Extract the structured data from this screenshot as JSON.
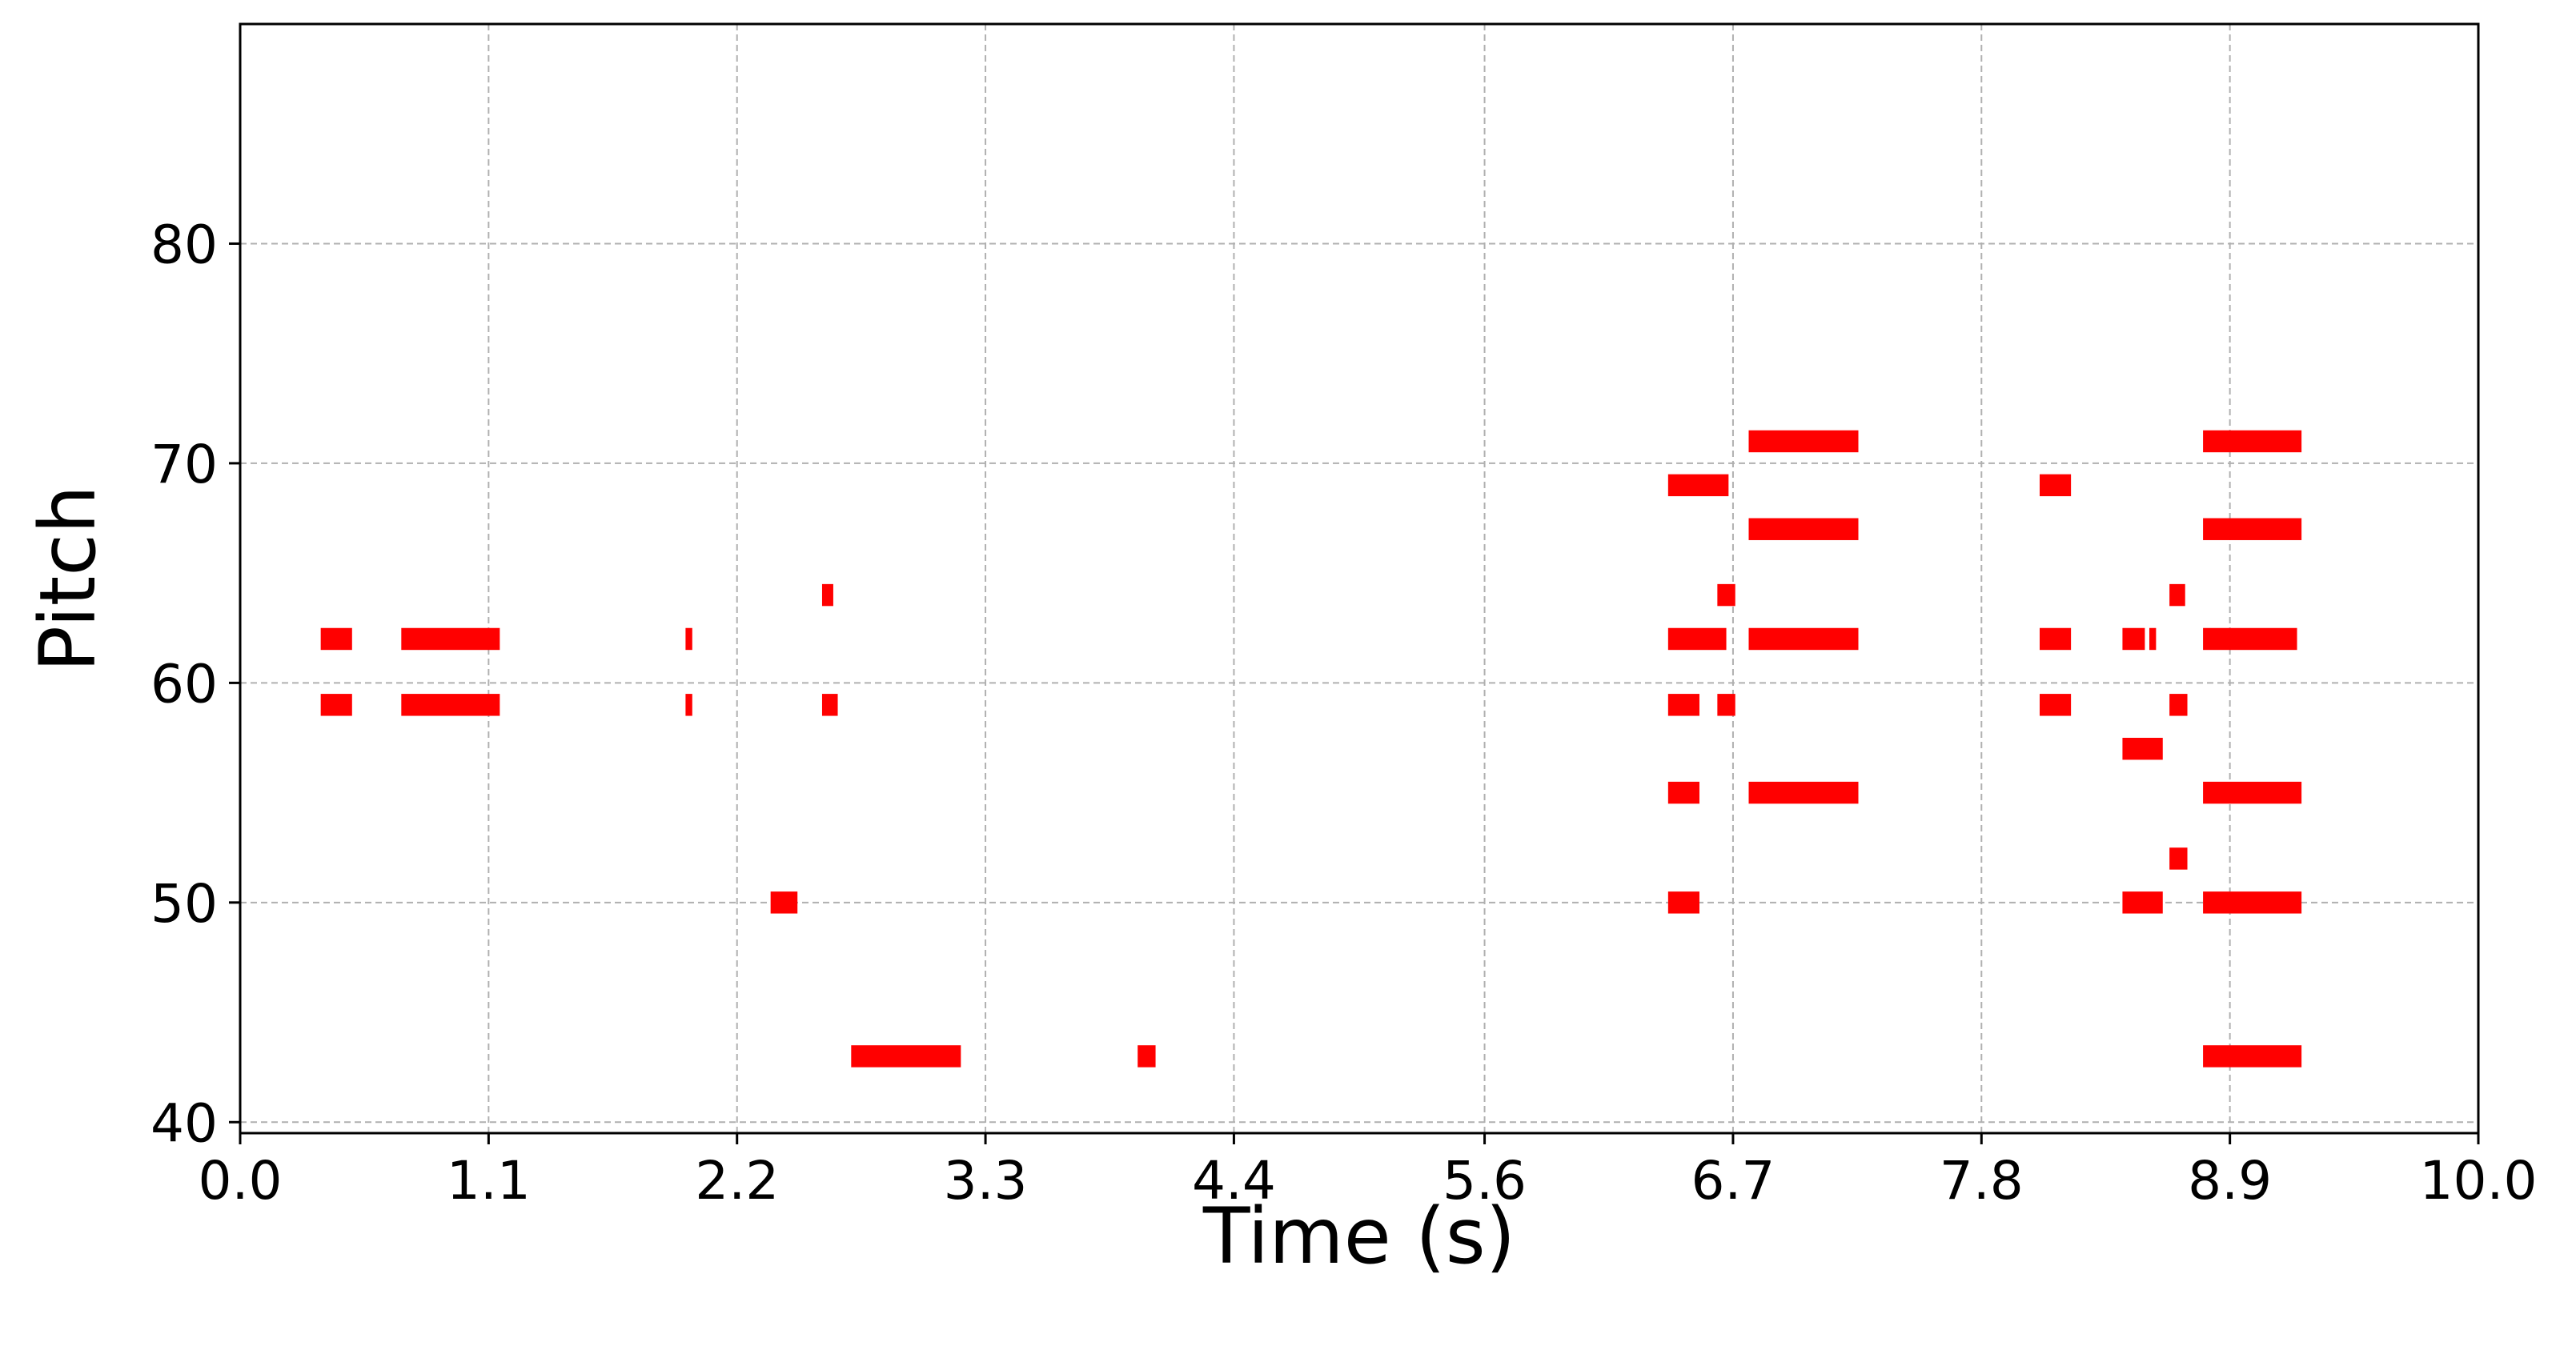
{
  "chart_data": {
    "type": "piano-roll",
    "xlabel": "Time (s)",
    "ylabel": "Pitch",
    "xlim": [
      0.0,
      10.0
    ],
    "ylim": [
      39.5,
      90.0
    ],
    "xticks": [
      0.0,
      1.11,
      2.22,
      3.33,
      4.44,
      5.56,
      6.67,
      7.78,
      8.89,
      10.0
    ],
    "xtick_labels": [
      "0.0",
      "1.1",
      "2.2",
      "3.3",
      "4.4",
      "5.6",
      "6.7",
      "7.8",
      "8.9",
      "10.0"
    ],
    "yticks": [
      40,
      50,
      60,
      70,
      80
    ],
    "ytick_labels": [
      "40",
      "50",
      "60",
      "70",
      "80"
    ],
    "grid": true,
    "note_color": "#ff0000",
    "notes": [
      {
        "start": 0.36,
        "end": 0.5,
        "pitch": 62
      },
      {
        "start": 0.36,
        "end": 0.5,
        "pitch": 59
      },
      {
        "start": 0.72,
        "end": 1.16,
        "pitch": 62
      },
      {
        "start": 0.72,
        "end": 1.16,
        "pitch": 59
      },
      {
        "start": 1.99,
        "end": 2.02,
        "pitch": 62
      },
      {
        "start": 1.99,
        "end": 2.02,
        "pitch": 59
      },
      {
        "start": 2.37,
        "end": 2.49,
        "pitch": 50
      },
      {
        "start": 2.6,
        "end": 2.65,
        "pitch": 64
      },
      {
        "start": 2.6,
        "end": 2.67,
        "pitch": 59
      },
      {
        "start": 2.73,
        "end": 3.22,
        "pitch": 43
      },
      {
        "start": 4.01,
        "end": 4.09,
        "pitch": 43
      },
      {
        "start": 6.38,
        "end": 6.65,
        "pitch": 69
      },
      {
        "start": 6.38,
        "end": 6.64,
        "pitch": 62
      },
      {
        "start": 6.38,
        "end": 6.52,
        "pitch": 59
      },
      {
        "start": 6.38,
        "end": 6.52,
        "pitch": 55
      },
      {
        "start": 6.38,
        "end": 6.52,
        "pitch": 50
      },
      {
        "start": 6.6,
        "end": 6.68,
        "pitch": 64
      },
      {
        "start": 6.6,
        "end": 6.68,
        "pitch": 59
      },
      {
        "start": 6.74,
        "end": 7.23,
        "pitch": 71
      },
      {
        "start": 6.74,
        "end": 7.23,
        "pitch": 67
      },
      {
        "start": 6.74,
        "end": 7.23,
        "pitch": 62
      },
      {
        "start": 6.74,
        "end": 7.23,
        "pitch": 55
      },
      {
        "start": 8.04,
        "end": 8.18,
        "pitch": 69
      },
      {
        "start": 8.04,
        "end": 8.18,
        "pitch": 62
      },
      {
        "start": 8.04,
        "end": 8.18,
        "pitch": 59
      },
      {
        "start": 8.41,
        "end": 8.51,
        "pitch": 62
      },
      {
        "start": 8.53,
        "end": 8.56,
        "pitch": 62
      },
      {
        "start": 8.41,
        "end": 8.59,
        "pitch": 57
      },
      {
        "start": 8.41,
        "end": 8.59,
        "pitch": 50
      },
      {
        "start": 8.62,
        "end": 8.69,
        "pitch": 64
      },
      {
        "start": 8.62,
        "end": 8.7,
        "pitch": 59
      },
      {
        "start": 8.62,
        "end": 8.7,
        "pitch": 52
      },
      {
        "start": 8.77,
        "end": 9.19,
        "pitch": 62
      },
      {
        "start": 8.77,
        "end": 9.21,
        "pitch": 71
      },
      {
        "start": 8.77,
        "end": 9.21,
        "pitch": 67
      },
      {
        "start": 8.77,
        "end": 9.21,
        "pitch": 55
      },
      {
        "start": 8.77,
        "end": 9.21,
        "pitch": 50
      },
      {
        "start": 8.77,
        "end": 9.21,
        "pitch": 43
      }
    ]
  }
}
